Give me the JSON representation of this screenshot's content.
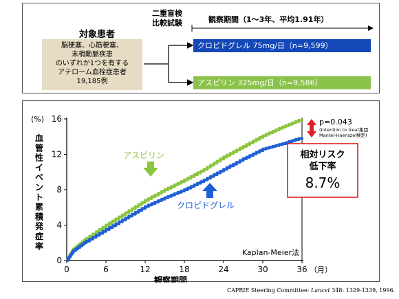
{
  "design": {
    "patients_title": "対象患者",
    "patients_lines": [
      "脳梗塞、心筋梗塞、",
      "末梢動脈疾患",
      "のいずれか1つを有する",
      "アテローム血栓症患者",
      "19,185例"
    ],
    "trial_type_lines": [
      "二重盲検",
      "比較試験"
    ],
    "observation_period": "観察期間（1～3年、平均1.91年）",
    "arm1_label": "クロピドグレル 75mg/日（n=9,599）",
    "arm2_label": "アスピリン 325mg/日（n=9,586）",
    "colors": {
      "clopidogrel": "#1f5fd6",
      "aspirin": "#8cc63f",
      "patient_box": "#e6dcc3",
      "red": "#e02020"
    }
  },
  "chart_data": {
    "type": "line",
    "xlabel": "観察期間",
    "ylabel": "血管性イベント累積発症率",
    "y_unit": "(%)",
    "x_unit": "（月）",
    "xlim": [
      0,
      36
    ],
    "ylim": [
      0,
      16
    ],
    "xticks": [
      0,
      6,
      12,
      18,
      24,
      30,
      36
    ],
    "yticks": [
      0,
      4,
      8,
      12,
      16
    ],
    "grid": false,
    "method": "Kaplan-Meier法",
    "series": [
      {
        "name": "アスピリン",
        "color": "#8cc63f",
        "x": [
          0,
          1,
          3,
          6,
          9,
          12,
          15,
          18,
          21,
          24,
          27,
          30,
          33,
          36
        ],
        "y": [
          0,
          1.3,
          2.5,
          4.0,
          5.4,
          6.8,
          8.0,
          9.1,
          10.3,
          11.7,
          12.9,
          14.1,
          15.1,
          16.0
        ]
      },
      {
        "name": "クロピドグレル",
        "color": "#1f5fd6",
        "x": [
          0,
          1,
          3,
          6,
          9,
          12,
          15,
          18,
          21,
          24,
          27,
          30,
          33,
          36
        ],
        "y": [
          0,
          1.1,
          2.2,
          3.5,
          4.8,
          6.1,
          7.1,
          8.0,
          9.1,
          10.3,
          11.5,
          12.6,
          13.2,
          13.9
        ]
      }
    ],
    "annotations": {
      "pvalue": "p=0.043",
      "pvalue_note_lines": [
        "(Intention to treat集団",
        "Mantel-Haenszel検定)"
      ],
      "rrr_title_lines": [
        "相対リスク",
        "低下率"
      ],
      "rrr_value": "8.7%"
    }
  },
  "citation_parts": {
    "pre": "CAPRIE Steering Committee: ",
    "journal": "Lancet",
    "post": " 348: 1329-1339, 1996."
  }
}
